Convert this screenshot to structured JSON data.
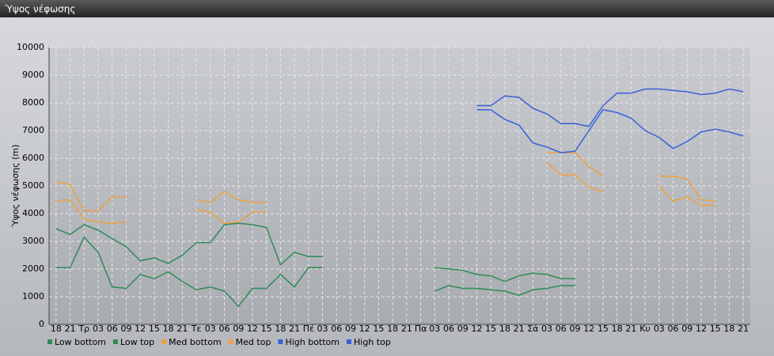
{
  "window_title": "Ύψος νέφωσης",
  "chart_data": {
    "type": "line",
    "y_label": "Ύψος νέφωσης (m)",
    "categories": [
      "18",
      "21",
      "Τρ",
      "03",
      "06",
      "09",
      "12",
      "15",
      "18",
      "21",
      "Τε",
      "03",
      "06",
      "09",
      "12",
      "15",
      "18",
      "21",
      "Πέ",
      "03",
      "06",
      "09",
      "12",
      "15",
      "18",
      "21",
      "Πα",
      "03",
      "06",
      "09",
      "12",
      "15",
      "18",
      "21",
      "Σά",
      "03",
      "06",
      "09",
      "12",
      "15",
      "18",
      "21",
      "Κυ",
      "03",
      "06",
      "09",
      "12",
      "15",
      "18",
      "21"
    ],
    "ylim": [
      0,
      10000
    ],
    "yticks": [
      0,
      1000,
      2000,
      3000,
      4000,
      5000,
      6000,
      7000,
      8000,
      9000,
      10000
    ],
    "grid": true,
    "legend": "bottom-left",
    "series": [
      {
        "name": "Low bottom",
        "color": "#2e8b57",
        "values": [
          2050,
          2050,
          3150,
          2600,
          1350,
          1300,
          1800,
          1650,
          1900,
          1550,
          1250,
          1350,
          1200,
          650,
          1300,
          1300,
          1800,
          1350,
          2050,
          2050,
          null,
          null,
          null,
          null,
          null,
          null,
          null,
          1200,
          1400,
          1300,
          1300,
          1250,
          1200,
          1050,
          1250,
          1300,
          1400,
          1400,
          null,
          null,
          null,
          null,
          null,
          null,
          null,
          null,
          null,
          null,
          null,
          null
        ]
      },
      {
        "name": "Low top",
        "color": "#2e8b57",
        "values": [
          3450,
          3250,
          3600,
          3400,
          3100,
          2800,
          2300,
          2400,
          2200,
          2500,
          2950,
          2950,
          3600,
          3650,
          3600,
          3500,
          2150,
          2600,
          2450,
          2450,
          null,
          null,
          null,
          null,
          null,
          null,
          null,
          2050,
          2000,
          1950,
          1800,
          1750,
          1550,
          1750,
          1850,
          1800,
          1650,
          1650,
          null,
          null,
          null,
          null,
          null,
          null,
          null,
          null,
          null,
          null,
          null,
          null
        ]
      },
      {
        "name": "Med bottom",
        "color": "#f0a040",
        "values": [
          4450,
          4500,
          3800,
          3700,
          3650,
          3700,
          null,
          null,
          null,
          null,
          4150,
          4050,
          3650,
          3700,
          4050,
          4050,
          null,
          null,
          null,
          null,
          null,
          null,
          null,
          null,
          null,
          null,
          null,
          null,
          null,
          null,
          null,
          null,
          null,
          null,
          null,
          5850,
          5400,
          5400,
          4950,
          4800,
          null,
          null,
          null,
          5000,
          4450,
          4600,
          4300,
          4300,
          null,
          null
        ]
      },
      {
        "name": "Med top",
        "color": "#f0a040",
        "values": [
          5150,
          5050,
          4100,
          4100,
          4600,
          4600,
          null,
          null,
          null,
          null,
          4500,
          4400,
          4800,
          4500,
          4400,
          4400,
          null,
          null,
          null,
          null,
          null,
          null,
          null,
          null,
          null,
          null,
          null,
          null,
          null,
          null,
          null,
          null,
          null,
          null,
          null,
          6200,
          6200,
          6200,
          5700,
          5350,
          null,
          null,
          null,
          5350,
          5350,
          5250,
          4500,
          4450,
          null,
          null
        ]
      },
      {
        "name": "High bottom",
        "color": "#3a5fd8",
        "values": [
          null,
          null,
          null,
          null,
          null,
          null,
          null,
          null,
          null,
          null,
          null,
          null,
          null,
          null,
          null,
          null,
          null,
          null,
          null,
          null,
          null,
          null,
          null,
          null,
          null,
          null,
          null,
          null,
          null,
          null,
          7750,
          7750,
          7400,
          7200,
          6550,
          6400,
          6200,
          6250,
          7000,
          7750,
          7650,
          7450,
          7000,
          6750,
          6350,
          6600,
          6950,
          7050,
          6950,
          6800
        ]
      },
      {
        "name": "High top",
        "color": "#3a5fd8",
        "values": [
          null,
          null,
          null,
          null,
          null,
          null,
          null,
          null,
          null,
          null,
          null,
          null,
          null,
          null,
          null,
          null,
          null,
          null,
          null,
          null,
          null,
          null,
          null,
          null,
          null,
          null,
          null,
          null,
          null,
          null,
          7900,
          7900,
          8250,
          8200,
          7800,
          7600,
          7250,
          7250,
          7150,
          7900,
          8350,
          8350,
          8500,
          8500,
          8450,
          8400,
          8300,
          8350,
          8500,
          8400
        ]
      }
    ]
  }
}
